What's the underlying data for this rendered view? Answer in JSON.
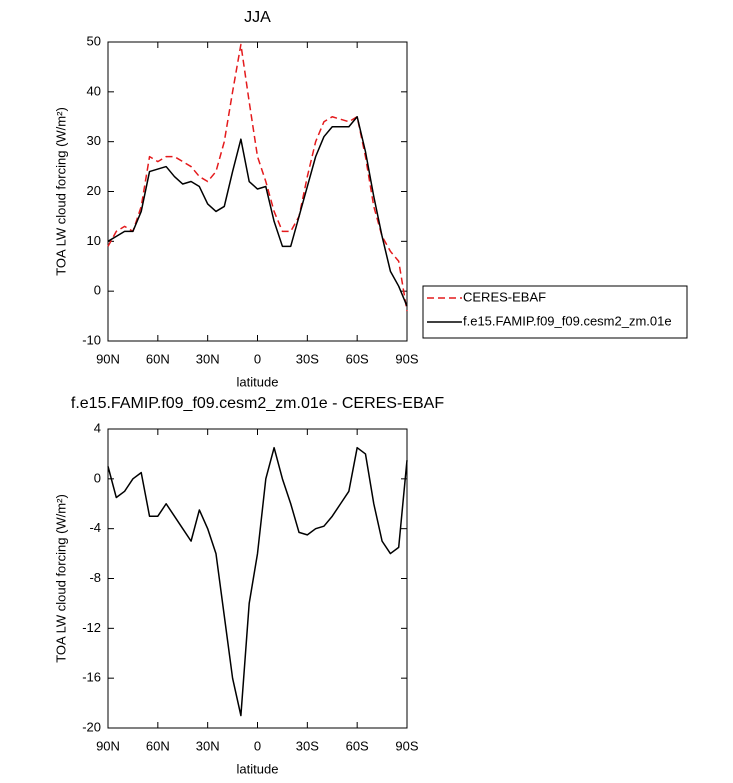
{
  "chart_data": [
    {
      "type": "line",
      "title": "JJA",
      "xlabel": "latitude",
      "ylabel": "TOA LW cloud forcing (W/m²)",
      "x": [
        90,
        85,
        80,
        75,
        70,
        65,
        60,
        55,
        50,
        45,
        40,
        35,
        30,
        25,
        20,
        15,
        10,
        5,
        0,
        -5,
        -10,
        -15,
        -20,
        -25,
        -30,
        -35,
        -40,
        -45,
        -50,
        -55,
        -60,
        -65,
        -70,
        -75,
        -80,
        -85,
        -90
      ],
      "xlim": [
        90,
        -90
      ],
      "xticks": [
        {
          "value": 90,
          "label": "90N"
        },
        {
          "value": 60,
          "label": "60N"
        },
        {
          "value": 30,
          "label": "30N"
        },
        0,
        {
          "value": -30,
          "label": "30S"
        },
        {
          "value": -60,
          "label": "60S"
        },
        {
          "value": -90,
          "label": "90S"
        }
      ],
      "ylim": [
        -10,
        50
      ],
      "yticks": [
        -10,
        0,
        10,
        20,
        30,
        40,
        50
      ],
      "legend": "right",
      "series": [
        {
          "name": "CERES-EBAF",
          "color": "#e41a1c",
          "line_style": "dashed",
          "values": [
            9,
            12,
            13,
            12,
            17,
            27,
            26,
            27,
            27,
            26,
            25,
            23,
            22,
            24,
            30,
            40,
            49.5,
            38,
            27,
            22,
            16,
            12,
            12,
            15,
            23,
            30,
            34,
            35,
            34.5,
            34,
            35,
            27,
            17,
            11,
            8,
            6,
            -4
          ]
        },
        {
          "name": "f.e15.FAMIP.f09_f09.cesm2_zm.01e",
          "color": "#000000",
          "line_style": "solid",
          "values": [
            10,
            11,
            12,
            12,
            16,
            24,
            24.5,
            25,
            23,
            21.5,
            22,
            21,
            17.5,
            16,
            17,
            24,
            30.5,
            22,
            20.5,
            21,
            14,
            9,
            9,
            15,
            21,
            27,
            31,
            33,
            33,
            33,
            35,
            28,
            19,
            11,
            4,
            1,
            -3
          ]
        }
      ]
    },
    {
      "type": "line",
      "title": "f.e15.FAMIP.f09_f09.cesm2_zm.01e - CERES-EBAF",
      "xlabel": "latitude",
      "ylabel": "TOA LW cloud forcing (W/m²)",
      "x": [
        90,
        85,
        80,
        75,
        70,
        65,
        60,
        55,
        50,
        45,
        40,
        35,
        30,
        25,
        20,
        15,
        10,
        5,
        0,
        -5,
        -10,
        -15,
        -20,
        -25,
        -30,
        -35,
        -40,
        -45,
        -50,
        -55,
        -60,
        -65,
        -70,
        -75,
        -80,
        -85,
        -90
      ],
      "xlim": [
        90,
        -90
      ],
      "xticks": [
        {
          "value": 90,
          "label": "90N"
        },
        {
          "value": 60,
          "label": "60N"
        },
        {
          "value": 30,
          "label": "30N"
        },
        0,
        {
          "value": -30,
          "label": "30S"
        },
        {
          "value": -60,
          "label": "60S"
        },
        {
          "value": -90,
          "label": "90S"
        }
      ],
      "ylim": [
        -20,
        4
      ],
      "yticks": [
        -20,
        -16,
        -12,
        -8,
        -4,
        0,
        4
      ],
      "color": "#000000",
      "values": [
        1,
        -1.5,
        -1,
        0,
        0.5,
        -3,
        -3,
        -2,
        -3,
        -4,
        -5,
        -2.5,
        -4,
        -6,
        -11,
        -16,
        -19,
        -10,
        -6,
        0,
        2.5,
        0,
        -2,
        -4.3,
        -4.5,
        -4,
        -3.8,
        -3,
        -2,
        -1,
        2.5,
        2,
        -2,
        -5,
        -6,
        -5.5,
        1.5
      ]
    }
  ]
}
